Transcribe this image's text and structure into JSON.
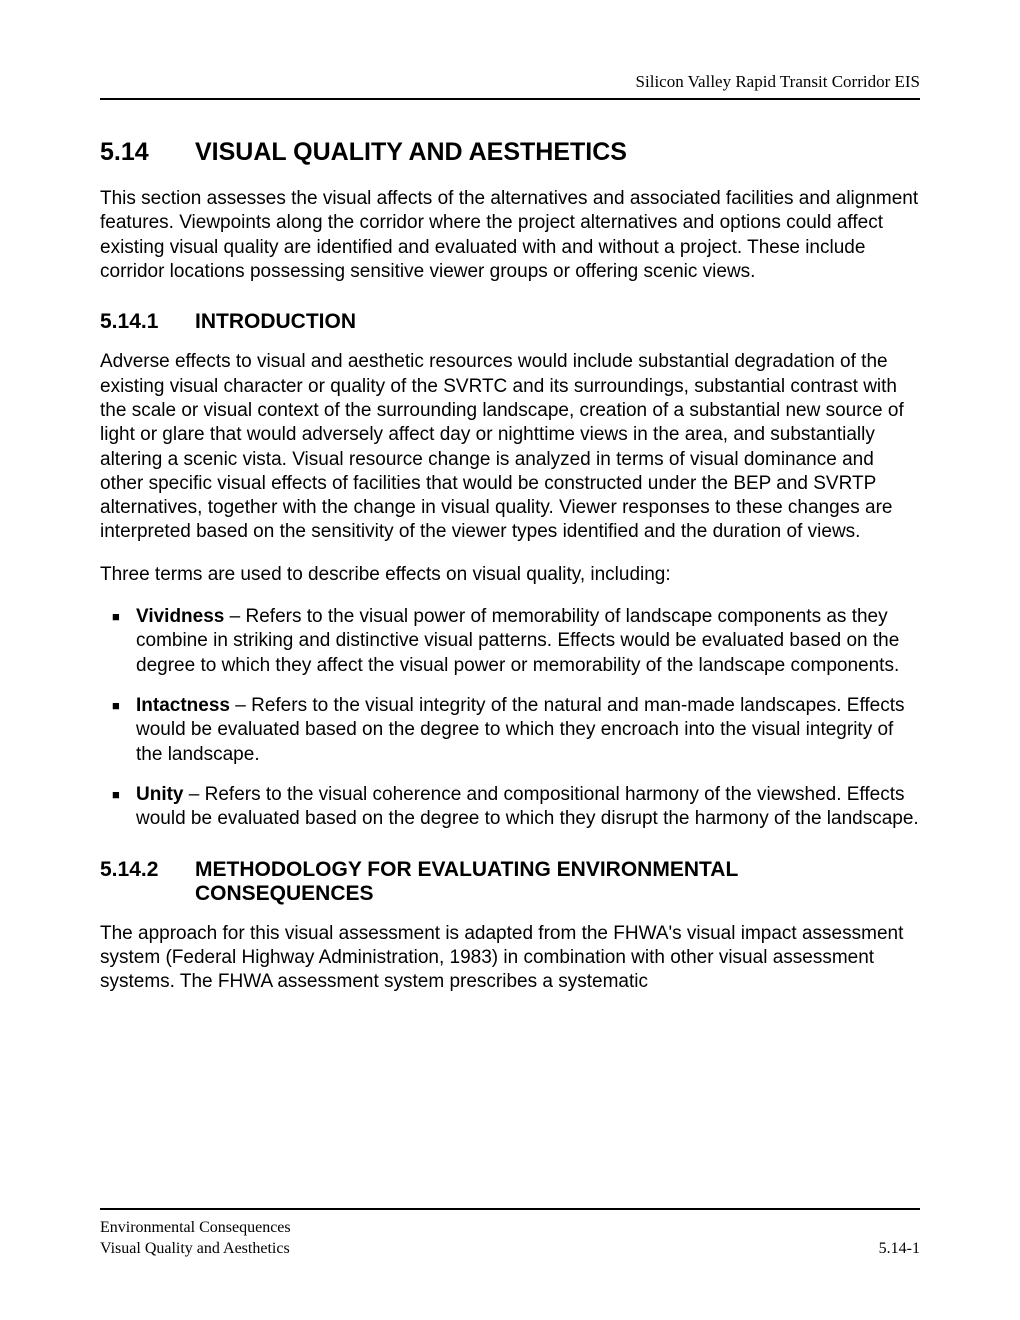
{
  "header": {
    "running_title": "Silicon Valley Rapid Transit Corridor EIS"
  },
  "section": {
    "number": "5.14",
    "title": "VISUAL QUALITY AND AESTHETICS",
    "intro": "This section assesses the visual affects of the alternatives and associated facilities and alignment features.  Viewpoints along the corridor where the project alternatives and options could affect existing visual quality are identified and evaluated with and without a project.  These include corridor locations possessing sensitive viewer groups or offering scenic views."
  },
  "subsection1": {
    "number": "5.14.1",
    "title": "INTRODUCTION",
    "para1": "Adverse effects to visual and aesthetic resources would include substantial degradation of the existing visual character or quality of the SVRTC and its surroundings, substantial contrast with the scale or visual context of the surrounding landscape, creation of a substantial new source of light or glare that would adversely affect day or nighttime views in the area, and substantially altering a scenic vista.  Visual resource change is analyzed in terms of visual dominance and other specific visual effects of facilities that would be constructed under the BEP and SVRTP alternatives, together with the change in visual quality.  Viewer responses to these changes are interpreted based on the sensitivity of the viewer types identified and the duration of views.",
    "para2": "Three terms are used to describe effects on visual quality, including:",
    "bullets": [
      {
        "term": "Vividness",
        "desc": " – Refers to the visual power of memorability of landscape components as they combine in striking and distinctive visual patterns.  Effects would be evaluated based on the degree to which they affect the visual power or memorability of the landscape components."
      },
      {
        "term": "Intactness",
        "desc": " – Refers to the visual integrity of the natural and man-made landscapes.  Effects would be evaluated based on the degree to which they encroach into the visual integrity of the landscape."
      },
      {
        "term": "Unity",
        "desc": " – Refers to the visual coherence and compositional harmony of the viewshed.  Effects would be evaluated based on the degree to which they disrupt the harmony of the landscape."
      }
    ]
  },
  "subsection2": {
    "number": "5.14.2",
    "title": "METHODOLOGY FOR EVALUATING ENVIRONMENTAL CONSEQUENCES",
    "para1": "The approach for this visual assessment is adapted from the FHWA's visual impact assessment system (Federal Highway Administration, 1983) in combination with other visual assessment systems.  The FHWA assessment system prescribes a systematic"
  },
  "footer": {
    "left_line1": "Environmental Consequences",
    "left_line2": "Visual Quality and Aesthetics",
    "page_number": "5.14-1"
  }
}
